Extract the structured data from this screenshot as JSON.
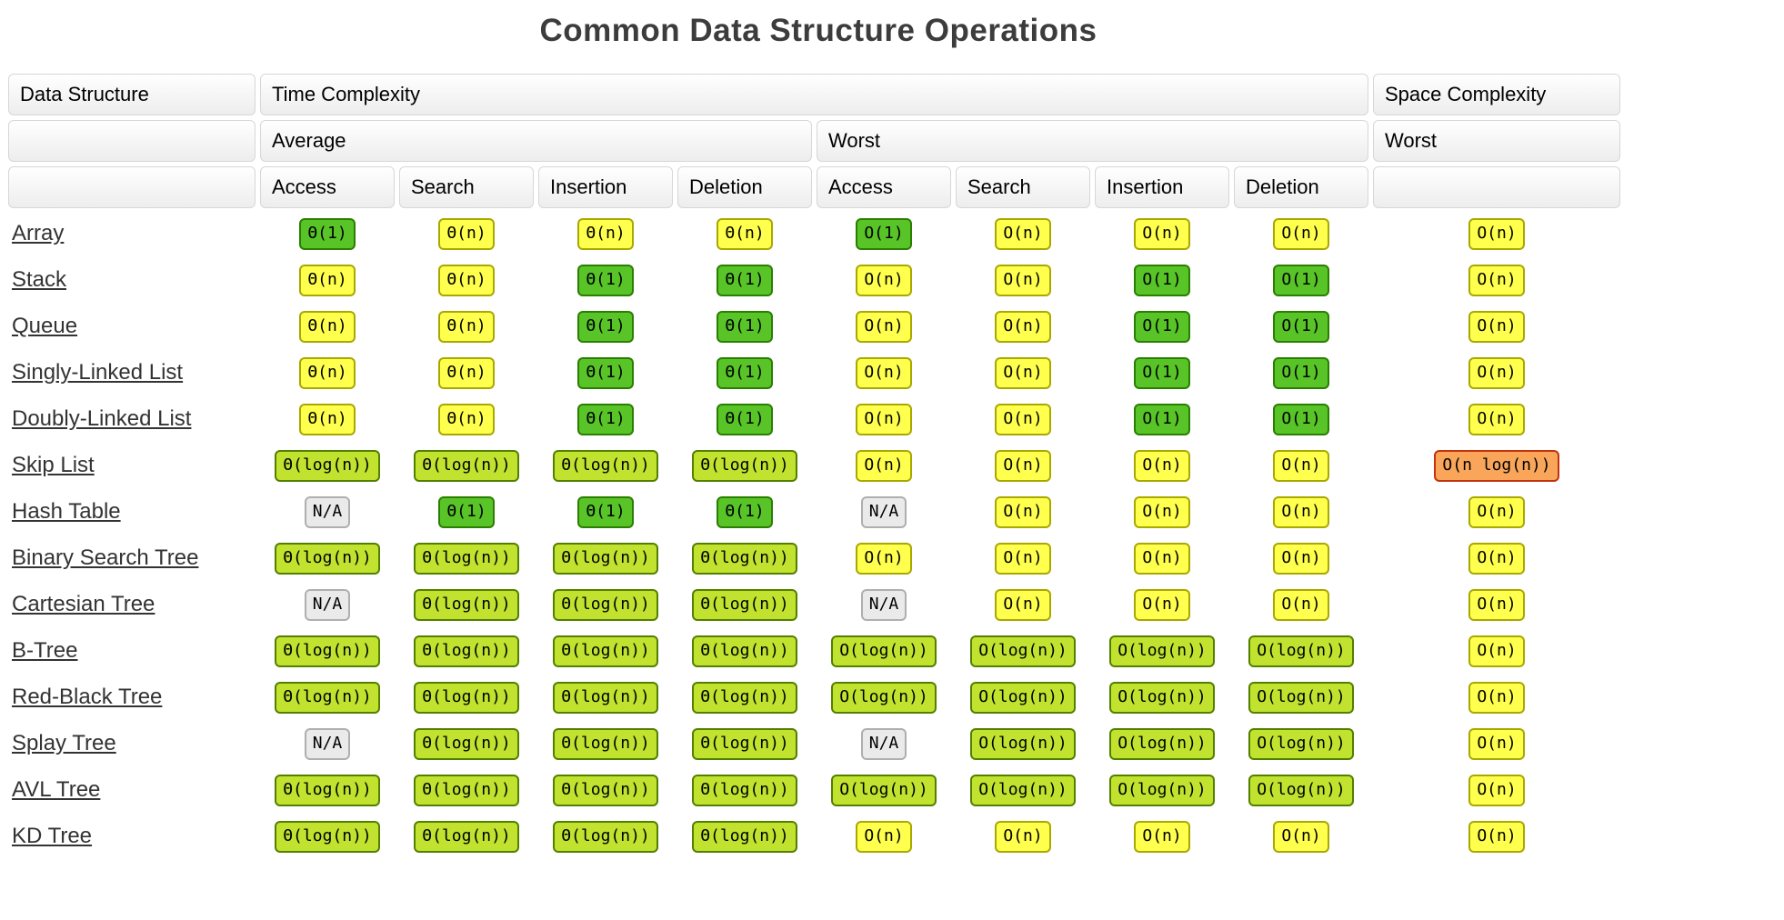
{
  "title": "Common Data Structure Operations",
  "header": {
    "data_structure": "Data Structure",
    "time_complexity": "Time Complexity",
    "space_complexity": "Space Complexity",
    "average": "Average",
    "worst": "Worst",
    "space_worst": "Worst",
    "operations": [
      "Access",
      "Search",
      "Insertion",
      "Deletion",
      "Access",
      "Search",
      "Insertion",
      "Deletion"
    ]
  },
  "colors": {
    "excellent": {
      "bg": "#58C428",
      "border": "#2A7E00"
    },
    "good": {
      "bg": "#C1E32F",
      "border": "#537F00"
    },
    "fair": {
      "bg": "#FFFF4E",
      "border": "#A8A800"
    },
    "bad": {
      "bg": "#F9A65A",
      "border": "#C2330C"
    },
    "na": {
      "bg": "#EAEAEA",
      "border": "#AFAFAF"
    }
  },
  "chart_data": {
    "type": "table",
    "title": "Common Data Structure Operations",
    "column_groups": [
      "Time Complexity (Average)",
      "Time Complexity (Worst)",
      "Space Complexity (Worst)"
    ],
    "columns": [
      "Average Access",
      "Average Search",
      "Average Insertion",
      "Average Deletion",
      "Worst Access",
      "Worst Search",
      "Worst Insertion",
      "Worst Deletion",
      "Space (Worst)"
    ]
  },
  "rows": [
    {
      "name": "Array",
      "cells": [
        {
          "t": "Θ(1)",
          "c": "excellent"
        },
        {
          "t": "Θ(n)",
          "c": "fair"
        },
        {
          "t": "Θ(n)",
          "c": "fair"
        },
        {
          "t": "Θ(n)",
          "c": "fair"
        },
        {
          "t": "O(1)",
          "c": "excellent"
        },
        {
          "t": "O(n)",
          "c": "fair"
        },
        {
          "t": "O(n)",
          "c": "fair"
        },
        {
          "t": "O(n)",
          "c": "fair"
        },
        {
          "t": "O(n)",
          "c": "fair"
        }
      ]
    },
    {
      "name": "Stack",
      "cells": [
        {
          "t": "Θ(n)",
          "c": "fair"
        },
        {
          "t": "Θ(n)",
          "c": "fair"
        },
        {
          "t": "Θ(1)",
          "c": "excellent"
        },
        {
          "t": "Θ(1)",
          "c": "excellent"
        },
        {
          "t": "O(n)",
          "c": "fair"
        },
        {
          "t": "O(n)",
          "c": "fair"
        },
        {
          "t": "O(1)",
          "c": "excellent"
        },
        {
          "t": "O(1)",
          "c": "excellent"
        },
        {
          "t": "O(n)",
          "c": "fair"
        }
      ]
    },
    {
      "name": "Queue",
      "cells": [
        {
          "t": "Θ(n)",
          "c": "fair"
        },
        {
          "t": "Θ(n)",
          "c": "fair"
        },
        {
          "t": "Θ(1)",
          "c": "excellent"
        },
        {
          "t": "Θ(1)",
          "c": "excellent"
        },
        {
          "t": "O(n)",
          "c": "fair"
        },
        {
          "t": "O(n)",
          "c": "fair"
        },
        {
          "t": "O(1)",
          "c": "excellent"
        },
        {
          "t": "O(1)",
          "c": "excellent"
        },
        {
          "t": "O(n)",
          "c": "fair"
        }
      ]
    },
    {
      "name": "Singly-Linked List",
      "cells": [
        {
          "t": "Θ(n)",
          "c": "fair"
        },
        {
          "t": "Θ(n)",
          "c": "fair"
        },
        {
          "t": "Θ(1)",
          "c": "excellent"
        },
        {
          "t": "Θ(1)",
          "c": "excellent"
        },
        {
          "t": "O(n)",
          "c": "fair"
        },
        {
          "t": "O(n)",
          "c": "fair"
        },
        {
          "t": "O(1)",
          "c": "excellent"
        },
        {
          "t": "O(1)",
          "c": "excellent"
        },
        {
          "t": "O(n)",
          "c": "fair"
        }
      ]
    },
    {
      "name": "Doubly-Linked List",
      "cells": [
        {
          "t": "Θ(n)",
          "c": "fair"
        },
        {
          "t": "Θ(n)",
          "c": "fair"
        },
        {
          "t": "Θ(1)",
          "c": "excellent"
        },
        {
          "t": "Θ(1)",
          "c": "excellent"
        },
        {
          "t": "O(n)",
          "c": "fair"
        },
        {
          "t": "O(n)",
          "c": "fair"
        },
        {
          "t": "O(1)",
          "c": "excellent"
        },
        {
          "t": "O(1)",
          "c": "excellent"
        },
        {
          "t": "O(n)",
          "c": "fair"
        }
      ]
    },
    {
      "name": "Skip List",
      "cells": [
        {
          "t": "Θ(log(n))",
          "c": "good"
        },
        {
          "t": "Θ(log(n))",
          "c": "good"
        },
        {
          "t": "Θ(log(n))",
          "c": "good"
        },
        {
          "t": "Θ(log(n))",
          "c": "good"
        },
        {
          "t": "O(n)",
          "c": "fair"
        },
        {
          "t": "O(n)",
          "c": "fair"
        },
        {
          "t": "O(n)",
          "c": "fair"
        },
        {
          "t": "O(n)",
          "c": "fair"
        },
        {
          "t": "O(n log(n))",
          "c": "bad"
        }
      ]
    },
    {
      "name": "Hash Table",
      "cells": [
        {
          "t": "N/A",
          "c": "na"
        },
        {
          "t": "Θ(1)",
          "c": "excellent"
        },
        {
          "t": "Θ(1)",
          "c": "excellent"
        },
        {
          "t": "Θ(1)",
          "c": "excellent"
        },
        {
          "t": "N/A",
          "c": "na"
        },
        {
          "t": "O(n)",
          "c": "fair"
        },
        {
          "t": "O(n)",
          "c": "fair"
        },
        {
          "t": "O(n)",
          "c": "fair"
        },
        {
          "t": "O(n)",
          "c": "fair"
        }
      ]
    },
    {
      "name": "Binary Search Tree",
      "cells": [
        {
          "t": "Θ(log(n))",
          "c": "good"
        },
        {
          "t": "Θ(log(n))",
          "c": "good"
        },
        {
          "t": "Θ(log(n))",
          "c": "good"
        },
        {
          "t": "Θ(log(n))",
          "c": "good"
        },
        {
          "t": "O(n)",
          "c": "fair"
        },
        {
          "t": "O(n)",
          "c": "fair"
        },
        {
          "t": "O(n)",
          "c": "fair"
        },
        {
          "t": "O(n)",
          "c": "fair"
        },
        {
          "t": "O(n)",
          "c": "fair"
        }
      ]
    },
    {
      "name": "Cartesian Tree",
      "cells": [
        {
          "t": "N/A",
          "c": "na"
        },
        {
          "t": "Θ(log(n))",
          "c": "good"
        },
        {
          "t": "Θ(log(n))",
          "c": "good"
        },
        {
          "t": "Θ(log(n))",
          "c": "good"
        },
        {
          "t": "N/A",
          "c": "na"
        },
        {
          "t": "O(n)",
          "c": "fair"
        },
        {
          "t": "O(n)",
          "c": "fair"
        },
        {
          "t": "O(n)",
          "c": "fair"
        },
        {
          "t": "O(n)",
          "c": "fair"
        }
      ]
    },
    {
      "name": "B-Tree",
      "cells": [
        {
          "t": "Θ(log(n))",
          "c": "good"
        },
        {
          "t": "Θ(log(n))",
          "c": "good"
        },
        {
          "t": "Θ(log(n))",
          "c": "good"
        },
        {
          "t": "Θ(log(n))",
          "c": "good"
        },
        {
          "t": "O(log(n))",
          "c": "good"
        },
        {
          "t": "O(log(n))",
          "c": "good"
        },
        {
          "t": "O(log(n))",
          "c": "good"
        },
        {
          "t": "O(log(n))",
          "c": "good"
        },
        {
          "t": "O(n)",
          "c": "fair"
        }
      ]
    },
    {
      "name": "Red-Black Tree",
      "cells": [
        {
          "t": "Θ(log(n))",
          "c": "good"
        },
        {
          "t": "Θ(log(n))",
          "c": "good"
        },
        {
          "t": "Θ(log(n))",
          "c": "good"
        },
        {
          "t": "Θ(log(n))",
          "c": "good"
        },
        {
          "t": "O(log(n))",
          "c": "good"
        },
        {
          "t": "O(log(n))",
          "c": "good"
        },
        {
          "t": "O(log(n))",
          "c": "good"
        },
        {
          "t": "O(log(n))",
          "c": "good"
        },
        {
          "t": "O(n)",
          "c": "fair"
        }
      ]
    },
    {
      "name": "Splay Tree",
      "cells": [
        {
          "t": "N/A",
          "c": "na"
        },
        {
          "t": "Θ(log(n))",
          "c": "good"
        },
        {
          "t": "Θ(log(n))",
          "c": "good"
        },
        {
          "t": "Θ(log(n))",
          "c": "good"
        },
        {
          "t": "N/A",
          "c": "na"
        },
        {
          "t": "O(log(n))",
          "c": "good"
        },
        {
          "t": "O(log(n))",
          "c": "good"
        },
        {
          "t": "O(log(n))",
          "c": "good"
        },
        {
          "t": "O(n)",
          "c": "fair"
        }
      ]
    },
    {
      "name": "AVL Tree",
      "cells": [
        {
          "t": "Θ(log(n))",
          "c": "good"
        },
        {
          "t": "Θ(log(n))",
          "c": "good"
        },
        {
          "t": "Θ(log(n))",
          "c": "good"
        },
        {
          "t": "Θ(log(n))",
          "c": "good"
        },
        {
          "t": "O(log(n))",
          "c": "good"
        },
        {
          "t": "O(log(n))",
          "c": "good"
        },
        {
          "t": "O(log(n))",
          "c": "good"
        },
        {
          "t": "O(log(n))",
          "c": "good"
        },
        {
          "t": "O(n)",
          "c": "fair"
        }
      ]
    },
    {
      "name": "KD Tree",
      "cells": [
        {
          "t": "Θ(log(n))",
          "c": "good"
        },
        {
          "t": "Θ(log(n))",
          "c": "good"
        },
        {
          "t": "Θ(log(n))",
          "c": "good"
        },
        {
          "t": "Θ(log(n))",
          "c": "good"
        },
        {
          "t": "O(n)",
          "c": "fair"
        },
        {
          "t": "O(n)",
          "c": "fair"
        },
        {
          "t": "O(n)",
          "c": "fair"
        },
        {
          "t": "O(n)",
          "c": "fair"
        },
        {
          "t": "O(n)",
          "c": "fair"
        }
      ]
    }
  ]
}
